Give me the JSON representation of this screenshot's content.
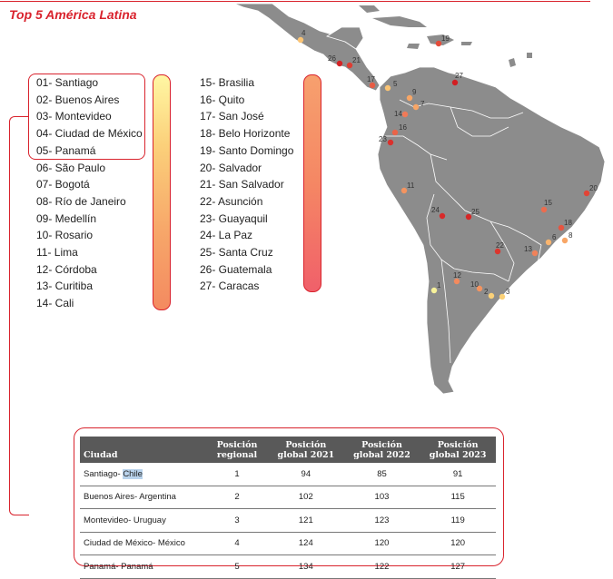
{
  "title": "Top 5 América Latina",
  "cities": [
    "01- Santiago",
    "02- Buenos Aires",
    "03- Montevideo",
    "04- Ciudad de México",
    "05- Panamá",
    "06- São Paulo",
    "07- Bogotá",
    "08- Río de Janeiro",
    "09- Medellín",
    "10- Rosario",
    "11- Lima",
    "12- Córdoba",
    "13- Curitiba",
    "14- Cali",
    "15- Brasilia",
    "16- Quito",
    "17- San José",
    "18- Belo Horizonte",
    "19- Santo Domingo",
    "20- Salvador",
    "21- San Salvador",
    "22- Asunción",
    "23- Guayaquil",
    "24- La Paz",
    "25- Santa Cruz",
    "26- Guatemala",
    "27- Caracas"
  ],
  "map_markers": [
    {
      "label": "1",
      "color": "#f7f29a"
    },
    {
      "label": "2",
      "color": "#fbd178"
    },
    {
      "label": "3",
      "color": "#fbd178"
    },
    {
      "label": "4",
      "color": "#fbc474"
    },
    {
      "label": "5",
      "color": "#fbc474"
    },
    {
      "label": "6",
      "color": "#fbb56e"
    },
    {
      "label": "7",
      "color": "#f8a666"
    },
    {
      "label": "8",
      "color": "#f8a666"
    },
    {
      "label": "9",
      "color": "#f8a666"
    },
    {
      "label": "10",
      "color": "#f49460"
    },
    {
      "label": "11",
      "color": "#f49460"
    },
    {
      "label": "12",
      "color": "#f28a5e"
    },
    {
      "label": "13",
      "color": "#f0825a"
    },
    {
      "label": "14",
      "color": "#f07a58"
    },
    {
      "label": "15",
      "color": "#ec6c4e"
    },
    {
      "label": "16",
      "color": "#ea6448"
    },
    {
      "label": "17",
      "color": "#e85c44"
    },
    {
      "label": "18",
      "color": "#e65440"
    },
    {
      "label": "19",
      "color": "#e44c3a"
    },
    {
      "label": "20",
      "color": "#e24436"
    },
    {
      "label": "21",
      "color": "#df3c32"
    },
    {
      "label": "22",
      "color": "#dc362e"
    },
    {
      "label": "23",
      "color": "#da302c"
    },
    {
      "label": "24",
      "color": "#d82a2a"
    },
    {
      "label": "25",
      "color": "#d62626"
    },
    {
      "label": "26",
      "color": "#d42224"
    },
    {
      "label": "27",
      "color": "#d21e22"
    }
  ],
  "table": {
    "headers": [
      "Ciudad",
      "Posición regional",
      "Posición global 2021",
      "Posición global 2022",
      "Posición global 2023"
    ],
    "rows": [
      {
        "city": "Santiago-",
        "country": "Chile",
        "regional": "1",
        "g2021": "94",
        "g2022": "85",
        "g2023": "91"
      },
      {
        "city": "Buenos Aires- Argentina",
        "country": "",
        "regional": "2",
        "g2021": "102",
        "g2022": "103",
        "g2023": "115"
      },
      {
        "city": "Montevideo- Uruguay",
        "country": "",
        "regional": "3",
        "g2021": "121",
        "g2022": "123",
        "g2023": "119"
      },
      {
        "city": "Ciudad de México- México",
        "country": "",
        "regional": "4",
        "g2021": "124",
        "g2022": "120",
        "g2023": "120"
      },
      {
        "city": "Panamá- Panamá",
        "country": "",
        "regional": "5",
        "g2021": "134",
        "g2022": "122",
        "g2023": "127"
      }
    ]
  },
  "colors": {
    "accent": "#d9232d",
    "land": "#8c8c8c",
    "header": "#595959"
  }
}
